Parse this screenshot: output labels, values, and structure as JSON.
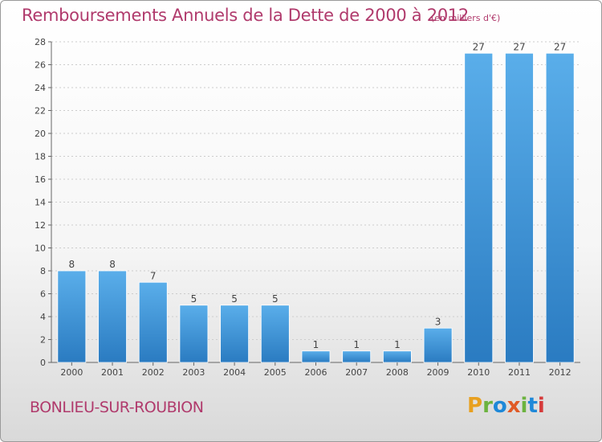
{
  "header": {
    "title": "Remboursements Annuels de la Dette de 2000 à 2012",
    "unit_note": "(en milliers d'€)"
  },
  "footer": {
    "commune": "BONLIEU-SUR-ROUBION",
    "logo_text": "Proxiti",
    "logo_colors": [
      "#e8a020",
      "#6cb33f",
      "#1e88d8",
      "#e05a26",
      "#6cb33f",
      "#1e88d8",
      "#d63a3a"
    ]
  },
  "colors": {
    "title": "#b03a6c",
    "bar_top": "#5aaeea",
    "bar_bottom": "#2a7bc1",
    "grid": "#cccccc",
    "axis": "#666666"
  },
  "chart_data": {
    "type": "bar",
    "title": "Remboursements Annuels de la Dette de 2000 à 2012",
    "subtitle": "(en milliers d'€)",
    "xlabel": "",
    "ylabel": "",
    "categories": [
      "2000",
      "2001",
      "2002",
      "2003",
      "2004",
      "2005",
      "2006",
      "2007",
      "2008",
      "2009",
      "2010",
      "2011",
      "2012"
    ],
    "values": [
      8,
      8,
      7,
      5,
      5,
      5,
      1,
      1,
      1,
      3,
      27,
      27,
      27
    ],
    "ylim": [
      0,
      28
    ],
    "yticks": [
      0,
      2,
      4,
      6,
      8,
      10,
      12,
      14,
      16,
      18,
      20,
      22,
      24,
      26,
      28
    ],
    "grid": true,
    "legend": "none",
    "data_labels": true
  }
}
